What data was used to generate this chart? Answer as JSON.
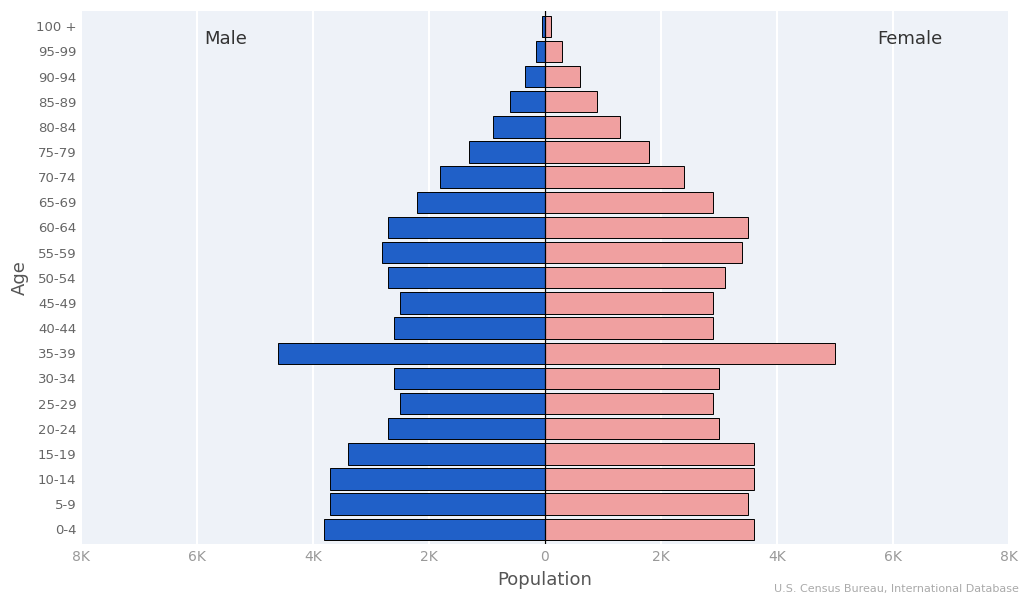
{
  "age_groups": [
    "0-4",
    "5-9",
    "10-14",
    "15-19",
    "20-24",
    "25-29",
    "30-34",
    "35-39",
    "40-44",
    "45-49",
    "50-54",
    "55-59",
    "60-64",
    "65-69",
    "70-74",
    "75-79",
    "80-84",
    "85-89",
    "90-94",
    "95-99",
    "100 +"
  ],
  "male": [
    3800,
    3700,
    3700,
    3400,
    2700,
    2500,
    2600,
    4600,
    2600,
    2500,
    2700,
    2800,
    2700,
    2200,
    1800,
    1300,
    900,
    600,
    350,
    150,
    50
  ],
  "female": [
    3600,
    3500,
    3600,
    3600,
    3000,
    2900,
    3000,
    5000,
    2900,
    2900,
    3100,
    3400,
    3500,
    2900,
    2400,
    1800,
    1300,
    900,
    600,
    300,
    100
  ],
  "male_color": "#2060c8",
  "female_color": "#f0a0a0",
  "male_edge_color": "#000000",
  "female_edge_color": "#000000",
  "xlim": 8000,
  "xticks": [
    -8000,
    -6000,
    -4000,
    -2000,
    0,
    2000,
    4000,
    6000,
    8000
  ],
  "xticklabels": [
    "8K",
    "6K",
    "4K",
    "2K",
    "0",
    "2K",
    "4K",
    "6K",
    "8K"
  ],
  "xlabel": "Population",
  "ylabel": "Age",
  "male_label": "Male",
  "female_label": "Female",
  "source_text": "U.S. Census Bureau, International Database",
  "background_color": "#eef2f8",
  "bar_linewidth": 0.7,
  "bar_height": 0.85
}
